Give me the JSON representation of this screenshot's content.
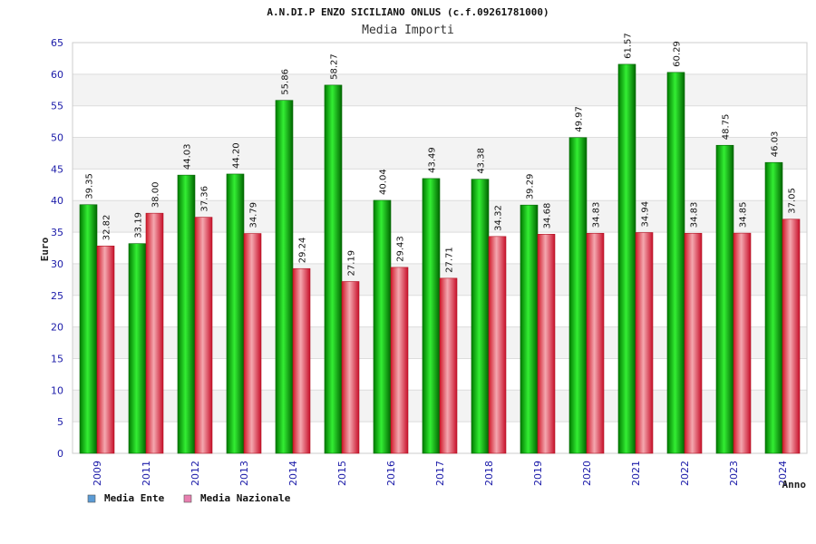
{
  "chart_data": {
    "type": "bar",
    "title": "A.N.DI.P ENZO SICILIANO ONLUS (c.f.09261781000)",
    "subtitle": "Media Importi",
    "xlabel": "Anno",
    "ylabel": "Euro",
    "ylim": [
      0,
      65
    ],
    "yticks": [
      0,
      5,
      10,
      15,
      20,
      25,
      30,
      35,
      40,
      45,
      50,
      55,
      60,
      65
    ],
    "grid": true,
    "legend_position": "bottom-left",
    "categories": [
      "2009",
      "2011",
      "2012",
      "2013",
      "2014",
      "2015",
      "2016",
      "2017",
      "2018",
      "2019",
      "2020",
      "2021",
      "2022",
      "2023",
      "2024"
    ],
    "series": [
      {
        "name": "Media Ente",
        "color": "#00b000",
        "legend_color": "#5b9bd5",
        "values": [
          39.35,
          33.19,
          44.03,
          44.2,
          55.86,
          58.27,
          40.04,
          43.49,
          43.38,
          39.29,
          49.97,
          61.57,
          60.29,
          48.75,
          46.03
        ],
        "labels": [
          "39.35",
          "33.19",
          "44.03",
          "44.20",
          "55.86",
          "58.27",
          "40.04",
          "43.49",
          "43.38",
          "39.29",
          "49.97",
          "61.57",
          "60.29",
          "48.75",
          "46.03"
        ]
      },
      {
        "name": "Media Nazionale",
        "color": "#e8283c",
        "legend_color": "#e87fb0",
        "values": [
          32.82,
          38.0,
          37.36,
          34.79,
          29.24,
          27.19,
          29.43,
          27.71,
          34.32,
          34.68,
          34.83,
          34.94,
          34.83,
          34.85,
          37.05
        ],
        "labels": [
          "32.82",
          "38.00",
          "37.36",
          "34.79",
          "29.24",
          "27.19",
          "29.43",
          "27.71",
          "34.32",
          "34.68",
          "34.83",
          "34.94",
          "34.83",
          "34.85",
          "37.05"
        ]
      }
    ]
  }
}
